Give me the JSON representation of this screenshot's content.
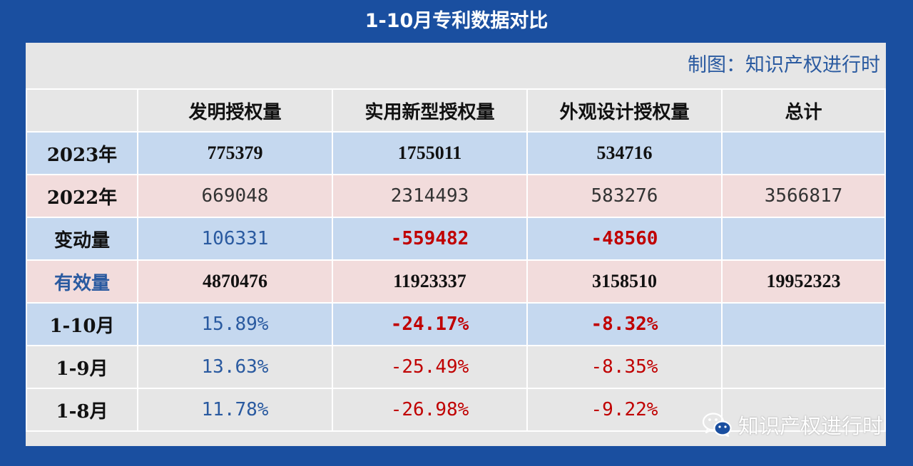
{
  "title": "1-10月专利数据对比",
  "credit": "制图：知识产权进行时",
  "watermark": {
    "icon": "wechat-icon",
    "text": "知识产权进行时"
  },
  "colors": {
    "background": "#1a4fa0",
    "row_blue": "#c5d8ef",
    "row_pink": "#f2dcdc",
    "row_gray": "#e6e6e6",
    "text_blue": "#2a5aa0",
    "text_red": "#c00000"
  },
  "table": {
    "headers": [
      "",
      "发明授权量",
      "实用新型授权量",
      "外观设计授权量",
      "总计"
    ],
    "rows": [
      {
        "label": "2023年",
        "values": [
          "775379",
          "1755011",
          "534716",
          ""
        ]
      },
      {
        "label": "2022年",
        "values": [
          "669048",
          "2314493",
          "583276",
          "3566817"
        ]
      },
      {
        "label": "变动量",
        "values": [
          "106331",
          "-559482",
          "-48560",
          ""
        ]
      },
      {
        "label": "有效量",
        "values": [
          "4870476",
          "11923337",
          "3158510",
          "19952323"
        ]
      },
      {
        "label": "1-10月",
        "values": [
          "15.89%",
          "-24.17%",
          "-8.32%",
          ""
        ]
      },
      {
        "label": "1-9月",
        "values": [
          "13.63%",
          "-25.49%",
          "-8.35%",
          ""
        ]
      },
      {
        "label": "1-8月",
        "values": [
          "11.78%",
          "-26.98%",
          "-9.22%",
          ""
        ]
      }
    ]
  }
}
